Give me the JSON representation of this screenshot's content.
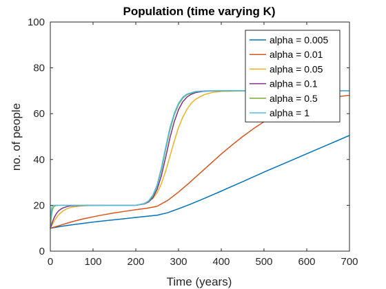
{
  "chart_data": {
    "type": "line",
    "title": "Population (time varying K)",
    "xlabel": "Time (years)",
    "ylabel": "no. of people",
    "xlim": [
      0,
      700
    ],
    "ylim": [
      0,
      100
    ],
    "xticks": [
      0,
      100,
      200,
      300,
      400,
      500,
      600,
      700
    ],
    "yticks": [
      0,
      20,
      40,
      60,
      80,
      100
    ],
    "grid": false,
    "legend_position": "top-right",
    "series": [
      {
        "name": "alpha = 0.005",
        "color": "#0072BD",
        "x": [
          0,
          25,
          50,
          75,
          100,
          125,
          150,
          175,
          200,
          225,
          250,
          275,
          300,
          325,
          350,
          375,
          400,
          425,
          450,
          475,
          500,
          525,
          550,
          575,
          600,
          625,
          650,
          675,
          700
        ],
        "y": [
          10,
          10.8,
          11.5,
          12.1,
          12.7,
          13.2,
          13.7,
          14.2,
          14.7,
          15.2,
          15.7,
          16.8,
          18.5,
          20.3,
          22.2,
          24.2,
          26.2,
          28.3,
          30.3,
          32.4,
          34.5,
          36.5,
          38.5,
          40.5,
          42.5,
          44.5,
          46.5,
          48.5,
          50.5
        ]
      },
      {
        "name": "alpha = 0.01",
        "color": "#D95319",
        "x": [
          0,
          25,
          50,
          75,
          100,
          125,
          150,
          175,
          200,
          225,
          250,
          275,
          300,
          325,
          350,
          375,
          400,
          425,
          450,
          475,
          500,
          525,
          550,
          575,
          600,
          625,
          650,
          675,
          700
        ],
        "y": [
          10,
          11.4,
          12.8,
          14,
          15,
          15.9,
          16.7,
          17.4,
          18.1,
          18.7,
          19.6,
          22.2,
          25.8,
          29.8,
          34,
          38.2,
          42.4,
          46.3,
          50,
          53.4,
          56.5,
          59.1,
          61.3,
          63.1,
          64.6,
          65.8,
          66.8,
          67.5,
          68
        ]
      },
      {
        "name": "alpha = 0.05",
        "color": "#EDB120",
        "x": [
          0,
          10,
          20,
          30,
          40,
          50,
          75,
          100,
          150,
          200,
          220,
          240,
          250,
          260,
          270,
          280,
          290,
          300,
          310,
          320,
          330,
          340,
          360,
          380,
          400,
          450,
          500,
          600,
          700
        ],
        "y": [
          10,
          13.5,
          16,
          17.6,
          18.6,
          19.2,
          19.8,
          19.96,
          20,
          20,
          20.8,
          23,
          25.5,
          29.5,
          35,
          41.5,
          48,
          54,
          58.5,
          62,
          64.6,
          66.3,
          68.3,
          69.3,
          69.7,
          69.95,
          70,
          70,
          70
        ]
      },
      {
        "name": "alpha = 0.1",
        "color": "#7E2F8E",
        "x": [
          0,
          5,
          10,
          15,
          20,
          25,
          30,
          40,
          50,
          75,
          100,
          150,
          200,
          220,
          230,
          240,
          250,
          260,
          270,
          280,
          290,
          300,
          310,
          320,
          330,
          340,
          360,
          400,
          500,
          600,
          700
        ],
        "y": [
          10,
          12.8,
          15,
          16.6,
          17.7,
          18.4,
          18.9,
          19.5,
          19.8,
          19.98,
          20,
          20,
          20,
          20.6,
          21.5,
          23.3,
          27,
          33,
          41,
          49.5,
          56.5,
          61.8,
          65.2,
          67.3,
          68.5,
          69.2,
          69.8,
          70,
          70,
          70,
          70
        ]
      },
      {
        "name": "alpha = 0.5",
        "color": "#77AC30",
        "x": [
          0,
          2,
          4,
          6,
          8,
          10,
          15,
          20,
          50,
          100,
          150,
          200,
          220,
          230,
          240,
          250,
          260,
          270,
          280,
          290,
          300,
          310,
          320,
          340,
          360,
          400,
          500,
          600,
          700
        ],
        "y": [
          10,
          14.6,
          17.3,
          18.7,
          19.4,
          19.7,
          19.95,
          20,
          20,
          20,
          20,
          20,
          20.7,
          21.8,
          24,
          28.5,
          35.5,
          44.5,
          53,
          59.5,
          64,
          66.8,
          68.3,
          69.6,
          69.95,
          70,
          70,
          70,
          70
        ]
      },
      {
        "name": "alpha = 1",
        "color": "#4DBEEE",
        "x": [
          0,
          1,
          2,
          3,
          4,
          6,
          8,
          10,
          20,
          50,
          100,
          150,
          200,
          220,
          230,
          240,
          250,
          260,
          270,
          280,
          290,
          300,
          310,
          320,
          340,
          360,
          400,
          500,
          600,
          700
        ],
        "y": [
          10,
          14.5,
          17.3,
          18.7,
          19.4,
          19.85,
          19.97,
          20,
          20,
          20,
          20,
          20,
          20,
          20.8,
          22,
          24.5,
          29,
          36.5,
          45.5,
          54,
          60.2,
          64.6,
          67.2,
          68.6,
          69.7,
          69.95,
          70,
          70,
          70,
          70
        ]
      }
    ]
  }
}
